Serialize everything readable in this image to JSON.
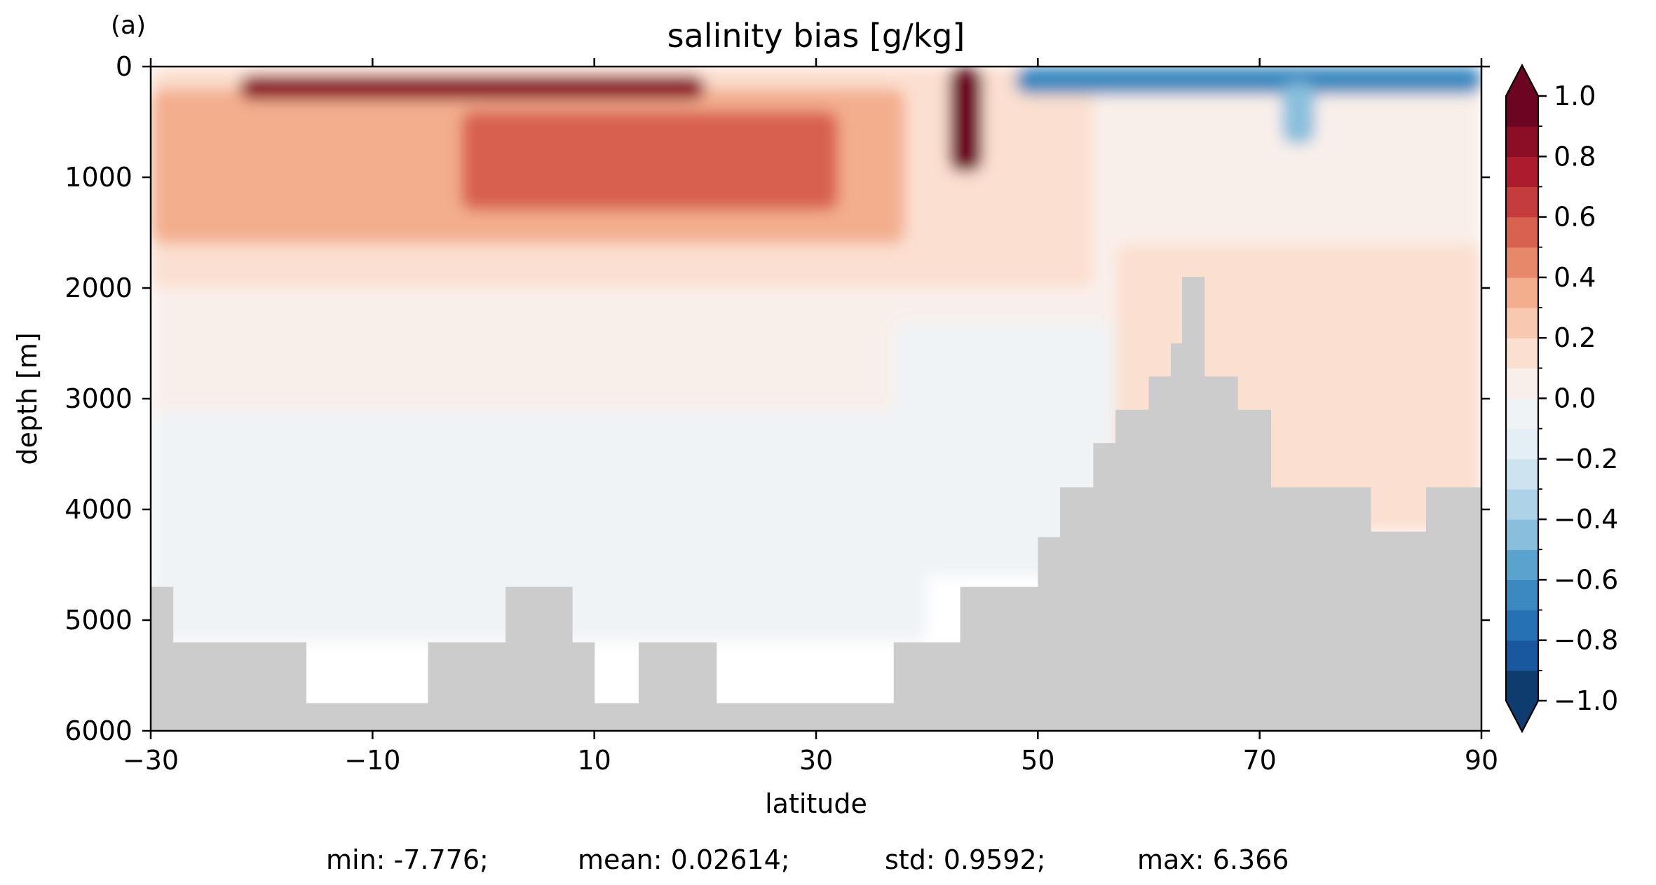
{
  "panel_label": "(a)",
  "stats": {
    "min": "min: -7.776;",
    "mean": "mean: 0.02614;",
    "std": "std: 0.9592;",
    "max": "max: 6.366"
  },
  "chart_data": {
    "type": "heatmap",
    "title": "salinity bias [g/kg]",
    "xlabel": "latitude",
    "ylabel": "depth [m]",
    "xlim": [
      -30,
      90
    ],
    "ylim": [
      6000,
      0
    ],
    "y_inverted": true,
    "x_ticks": [
      -30,
      -10,
      10,
      30,
      50,
      70,
      90
    ],
    "x_tick_labels": [
      "−30",
      "−10",
      "10",
      "30",
      "50",
      "70",
      "90"
    ],
    "y_ticks": [
      0,
      1000,
      2000,
      3000,
      4000,
      5000,
      6000
    ],
    "y_tick_labels": [
      "0",
      "1000",
      "2000",
      "3000",
      "4000",
      "5000",
      "6000"
    ],
    "colormap": "RdBu_r",
    "colorbar": {
      "range": [
        -1.0,
        1.0
      ],
      "levels": [
        -1.0,
        -0.9,
        -0.8,
        -0.7,
        -0.6,
        -0.5,
        -0.4,
        -0.3,
        -0.2,
        -0.1,
        0.0,
        0.1,
        0.2,
        0.3,
        0.4,
        0.5,
        0.6,
        0.7,
        0.8,
        0.9,
        1.0
      ],
      "tick_values": [
        1.0,
        0.8,
        0.6,
        0.4,
        0.2,
        0.0,
        -0.2,
        -0.4,
        -0.6,
        -0.8,
        -1.0
      ],
      "tick_labels": [
        "1.0",
        "0.8",
        "0.6",
        "0.4",
        "0.2",
        "0.0",
        "−0.2",
        "−0.4",
        "−0.6",
        "−0.8",
        "−1.0"
      ],
      "colors": [
        "#0e3c6f",
        "#19579e",
        "#2670b4",
        "#3b89c0",
        "#5ba3cf",
        "#89bfdd",
        "#aed2e7",
        "#cde3ef",
        "#e3eef5",
        "#f0f3f6",
        "#f9efea",
        "#fbdfd0",
        "#f9c8b0",
        "#f3ae8e",
        "#e8886a",
        "#d8614f",
        "#c43c3c",
        "#ad1c2e",
        "#8c0d26",
        "#6c0521"
      ],
      "extend": "both"
    },
    "land_color": "#cccccc",
    "fields": [
      {
        "lat": [
          -30,
          90
        ],
        "depth": [
          0,
          4000
        ],
        "value": 0.05
      },
      {
        "lat": [
          -30,
          40
        ],
        "depth": [
          3100,
          5200
        ],
        "value": -0.05
      },
      {
        "lat": [
          37,
          58
        ],
        "depth": [
          2300,
          4600
        ],
        "value": -0.05
      },
      {
        "lat": [
          -30,
          55
        ],
        "depth": [
          0,
          2000
        ],
        "value": 0.15
      },
      {
        "lat": [
          57,
          90
        ],
        "depth": [
          1600,
          4200
        ],
        "value": 0.15
      },
      {
        "lat": [
          -30,
          38
        ],
        "depth": [
          200,
          1600
        ],
        "value": 0.35
      },
      {
        "lat": [
          -2,
          32
        ],
        "depth": [
          400,
          1300
        ],
        "value": 0.55
      },
      {
        "lat": [
          -22,
          20
        ],
        "depth": [
          80,
          300
        ],
        "value": 0.85
      },
      {
        "lat": [
          42,
          45
        ],
        "depth": [
          0,
          950
        ],
        "value": 1.2
      },
      {
        "lat": [
          48,
          90
        ],
        "depth": [
          0,
          250
        ],
        "value": -0.7
      },
      {
        "lat": [
          72,
          75
        ],
        "depth": [
          150,
          700
        ],
        "value": -0.45
      }
    ],
    "bathymetry": [
      {
        "lat": [
          -30,
          -28
        ],
        "floor_depth": 4700
      },
      {
        "lat": [
          -28,
          -16
        ],
        "floor_depth": 5200
      },
      {
        "lat": [
          -16,
          -5
        ],
        "floor_depth": 5750
      },
      {
        "lat": [
          -5,
          2
        ],
        "floor_depth": 5200
      },
      {
        "lat": [
          2,
          8
        ],
        "floor_depth": 4700
      },
      {
        "lat": [
          8,
          10
        ],
        "floor_depth": 5200
      },
      {
        "lat": [
          10,
          14
        ],
        "floor_depth": 5750
      },
      {
        "lat": [
          14,
          21
        ],
        "floor_depth": 5200
      },
      {
        "lat": [
          21,
          37
        ],
        "floor_depth": 5750
      },
      {
        "lat": [
          37,
          43
        ],
        "floor_depth": 5200
      },
      {
        "lat": [
          43,
          50
        ],
        "floor_depth": 4700
      },
      {
        "lat": [
          50,
          52
        ],
        "floor_depth": 4250
      },
      {
        "lat": [
          52,
          55
        ],
        "floor_depth": 3800
      },
      {
        "lat": [
          55,
          57
        ],
        "floor_depth": 3400
      },
      {
        "lat": [
          57,
          60
        ],
        "floor_depth": 3100
      },
      {
        "lat": [
          60,
          62
        ],
        "floor_depth": 2800
      },
      {
        "lat": [
          62,
          63
        ],
        "floor_depth": 2500
      },
      {
        "lat": [
          63,
          65
        ],
        "floor_depth": 1900
      },
      {
        "lat": [
          65,
          68
        ],
        "floor_depth": 2800
      },
      {
        "lat": [
          68,
          71
        ],
        "floor_depth": 3100
      },
      {
        "lat": [
          71,
          72
        ],
        "floor_depth": 3800
      },
      {
        "lat": [
          72,
          80
        ],
        "floor_depth": 3800
      },
      {
        "lat": [
          80,
          85
        ],
        "floor_depth": 4200
      },
      {
        "lat": [
          85,
          90
        ],
        "floor_depth": 3800
      }
    ]
  }
}
